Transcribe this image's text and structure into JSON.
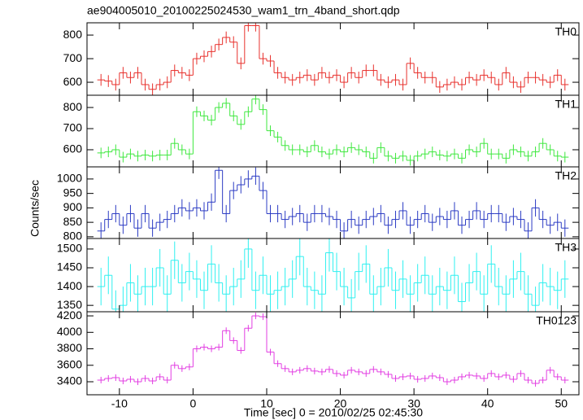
{
  "chart_data": [
    {
      "type": "histogram",
      "title": "ae904005010_20100225024530_wam1_trn_4band_short.qdp",
      "label": "TH0",
      "color": "#e8302c",
      "bins": [
        -13,
        -12,
        -11,
        -10,
        -9,
        -8,
        -7,
        -6,
        -5,
        -4,
        -3,
        -2,
        -1,
        0,
        1,
        2,
        3,
        4,
        5,
        6,
        7,
        8,
        9,
        10,
        11,
        12,
        13,
        14,
        15,
        16,
        17,
        18,
        19,
        20,
        21,
        22,
        23,
        24,
        25,
        26,
        27,
        28,
        29,
        30,
        31,
        32,
        33,
        34,
        35,
        36,
        37,
        38,
        39,
        40,
        41,
        42,
        43,
        44,
        45,
        46,
        47,
        48,
        49,
        50,
        51
      ],
      "values": [
        610,
        605,
        590,
        640,
        620,
        640,
        590,
        570,
        590,
        600,
        650,
        640,
        630,
        700,
        710,
        730,
        760,
        790,
        770,
        680,
        840,
        840,
        700,
        690,
        640,
        620,
        610,
        620,
        630,
        610,
        640,
        620,
        630,
        600,
        640,
        620,
        650,
        650,
        610,
        600,
        610,
        590,
        680,
        640,
        620,
        620,
        580,
        590,
        600,
        590,
        620,
        610,
        630,
        620,
        590,
        640,
        600,
        580,
        620,
        620,
        610,
        600,
        630,
        590
      ],
      "error": 25,
      "ylim": [
        545,
        852
      ],
      "yticks": [
        600,
        700,
        800
      ]
    },
    {
      "type": "histogram",
      "label": "TH1",
      "color": "#3ee83e",
      "bins": [
        -13,
        -12,
        -11,
        -10,
        -9,
        -8,
        -7,
        -6,
        -5,
        -4,
        -3,
        -2,
        -1,
        0,
        1,
        2,
        3,
        4,
        5,
        6,
        7,
        8,
        9,
        10,
        11,
        12,
        13,
        14,
        15,
        16,
        17,
        18,
        19,
        20,
        21,
        22,
        23,
        24,
        25,
        26,
        27,
        28,
        29,
        30,
        31,
        32,
        33,
        34,
        35,
        36,
        37,
        38,
        39,
        40,
        41,
        42,
        43,
        44,
        45,
        46,
        47,
        48,
        49,
        50,
        51
      ],
      "values": [
        585,
        590,
        600,
        565,
        580,
        570,
        575,
        570,
        575,
        575,
        630,
        600,
        580,
        780,
        760,
        740,
        800,
        820,
        760,
        720,
        780,
        840,
        790,
        690,
        660,
        620,
        600,
        600,
        590,
        620,
        590,
        580,
        600,
        590,
        610,
        600,
        590,
        560,
        610,
        570,
        560,
        570,
        550,
        570,
        580,
        590,
        575,
        570,
        580,
        560,
        600,
        590,
        630,
        580,
        580,
        560,
        600,
        590,
        570,
        590,
        630,
        600,
        570,
        565
      ],
      "error": 25,
      "ylim": [
        519,
        858
      ],
      "yticks": [
        600,
        700,
        800
      ]
    },
    {
      "type": "histogram",
      "label": "TH2",
      "ylabel": "Counts/sec",
      "color": "#2c3cc4",
      "bins": [
        -13,
        -12,
        -11,
        -10,
        -9,
        -8,
        -7,
        -6,
        -5,
        -4,
        -3,
        -2,
        -1,
        0,
        1,
        2,
        3,
        4,
        5,
        6,
        7,
        8,
        9,
        10,
        11,
        12,
        13,
        14,
        15,
        16,
        17,
        18,
        19,
        20,
        21,
        22,
        23,
        24,
        25,
        26,
        27,
        28,
        29,
        30,
        31,
        32,
        33,
        34,
        35,
        36,
        37,
        38,
        39,
        40,
        41,
        42,
        43,
        44,
        45,
        46,
        47,
        48,
        49,
        50,
        51
      ],
      "values": [
        820,
        860,
        880,
        840,
        880,
        830,
        880,
        830,
        850,
        860,
        880,
        900,
        890,
        900,
        890,
        920,
        1030,
        880,
        960,
        980,
        1000,
        1010,
        960,
        880,
        880,
        860,
        870,
        880,
        850,
        880,
        880,
        870,
        860,
        820,
        860,
        840,
        860,
        870,
        880,
        840,
        860,
        890,
        840,
        860,
        880,
        850,
        870,
        860,
        890,
        840,
        860,
        890,
        860,
        880,
        880,
        850,
        870,
        860,
        820,
        900,
        860,
        840,
        850,
        830
      ],
      "error": 30,
      "ylim": [
        794,
        1042
      ],
      "yticks": [
        800,
        850,
        900,
        950,
        1000
      ]
    },
    {
      "type": "histogram",
      "label": "TH3",
      "color": "#2ef0f0",
      "bins": [
        -13,
        -12,
        -11,
        -10,
        -9,
        -8,
        -7,
        -6,
        -5,
        -4,
        -3,
        -2,
        -1,
        0,
        1,
        2,
        3,
        4,
        5,
        6,
        7,
        8,
        9,
        10,
        11,
        12,
        13,
        14,
        15,
        16,
        17,
        18,
        19,
        20,
        21,
        22,
        23,
        24,
        25,
        26,
        27,
        28,
        29,
        30,
        31,
        32,
        33,
        34,
        35,
        36,
        37,
        38,
        39,
        40,
        41,
        42,
        43,
        44,
        45,
        46,
        47,
        48,
        49,
        50,
        51
      ],
      "values": [
        1400,
        1430,
        1340,
        1350,
        1410,
        1380,
        1400,
        1400,
        1450,
        1380,
        1470,
        1410,
        1440,
        1420,
        1390,
        1460,
        1410,
        1380,
        1400,
        1420,
        1500,
        1390,
        1430,
        1380,
        1390,
        1400,
        1420,
        1480,
        1400,
        1390,
        1380,
        1490,
        1440,
        1400,
        1370,
        1440,
        1460,
        1380,
        1400,
        1450,
        1390,
        1420,
        1380,
        1410,
        1430,
        1380,
        1400,
        1390,
        1430,
        1360,
        1410,
        1440,
        1380,
        1460,
        1400,
        1380,
        1420,
        1440,
        1380,
        1350,
        1410,
        1400,
        1390,
        1420
      ],
      "error": 50,
      "ylim": [
        1333,
        1528
      ],
      "yticks": [
        1350,
        1400,
        1450,
        1500
      ]
    },
    {
      "type": "histogram",
      "label": "TH0123",
      "xlabel": "Time [sec] 0 = 2010/02/25 02:45:30",
      "color": "#e23ee2",
      "bins": [
        -13,
        -12,
        -11,
        -10,
        -9,
        -8,
        -7,
        -6,
        -5,
        -4,
        -3,
        -2,
        -1,
        0,
        1,
        2,
        3,
        4,
        5,
        6,
        7,
        8,
        9,
        10,
        11,
        12,
        13,
        14,
        15,
        16,
        17,
        18,
        19,
        20,
        21,
        22,
        23,
        24,
        25,
        26,
        27,
        28,
        29,
        30,
        31,
        32,
        33,
        34,
        35,
        36,
        37,
        38,
        39,
        40,
        41,
        42,
        43,
        44,
        45,
        46,
        47,
        48,
        49,
        50,
        51
      ],
      "values": [
        3420,
        3440,
        3450,
        3410,
        3430,
        3400,
        3440,
        3410,
        3460,
        3420,
        3600,
        3560,
        3580,
        3800,
        3820,
        3800,
        3820,
        4020,
        3900,
        3780,
        4050,
        4200,
        4190,
        3760,
        3620,
        3560,
        3520,
        3540,
        3560,
        3530,
        3520,
        3550,
        3500,
        3480,
        3540,
        3520,
        3500,
        3550,
        3520,
        3490,
        3440,
        3460,
        3470,
        3430,
        3440,
        3470,
        3450,
        3400,
        3420,
        3460,
        3480,
        3470,
        3440,
        3500,
        3460,
        3480,
        3430,
        3500,
        3420,
        3380,
        3420,
        3540,
        3460,
        3420
      ],
      "error": 40,
      "ylim": [
        3242,
        4250
      ],
      "yticks": [
        3400,
        3600,
        3800,
        4000,
        4200
      ],
      "xlim": [
        -14.4,
        52.4
      ],
      "xticks": [
        -10,
        0,
        10,
        20,
        30,
        40,
        50
      ]
    }
  ]
}
